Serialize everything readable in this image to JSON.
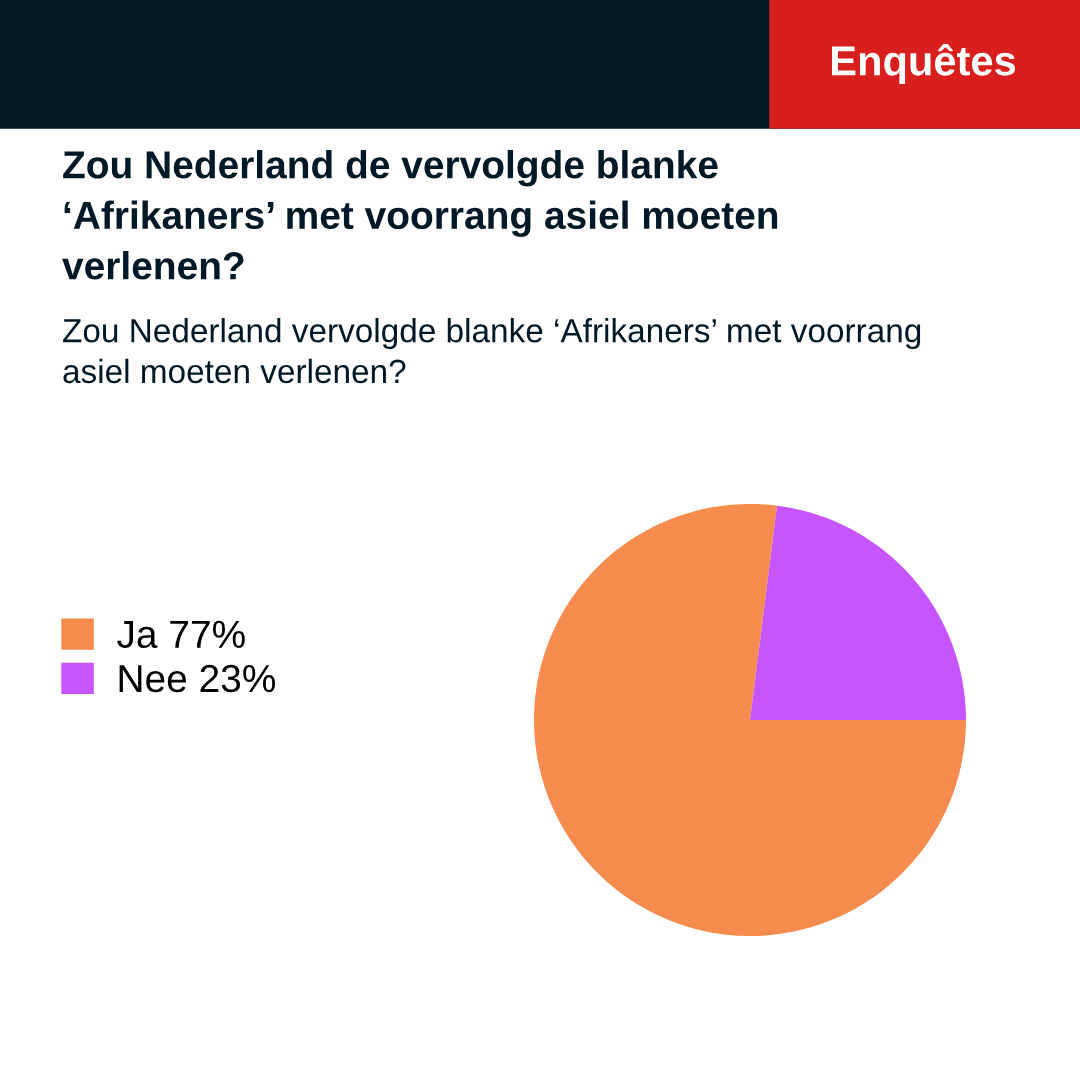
{
  "chart_data": {
    "type": "pie",
    "title": "Zou Nederland de vervolgde blanke ‘Afrikaners’ met voorrang asiel moeten verlenen?",
    "subtitle": "Zou Nederland vervolgde blanke ‘Afrikaners’ met voorrang asiel moeten verlenen?",
    "annotations": [
      "Enquêtes"
    ],
    "categories": [
      "Ja 77%",
      "Nee 23%"
    ],
    "values": [
      77,
      23
    ],
    "colors": [
      "#f58b4c",
      "#c755ff"
    ],
    "legend": "left"
  }
}
